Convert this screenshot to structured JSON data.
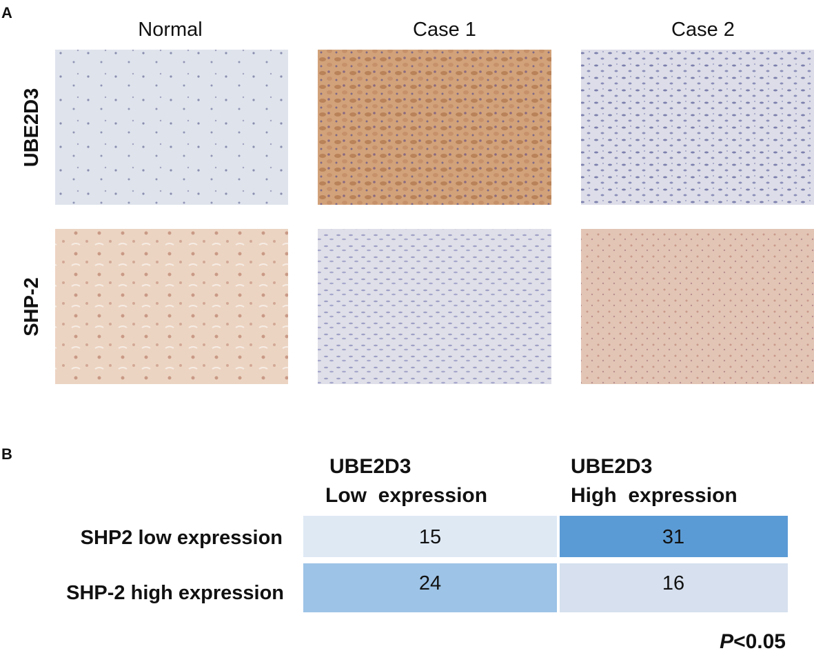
{
  "panel_a": {
    "label": "A",
    "columns": [
      "Normal",
      "Case 1",
      "Case 2"
    ],
    "rows": [
      "UBE2D3",
      "SHP-2"
    ]
  },
  "panel_b": {
    "label": "B",
    "column_headers": [
      [
        "UBE2D3",
        "Low  expression"
      ],
      [
        "UBE2D3",
        "High  expression"
      ]
    ],
    "row_headers": [
      "SHP2 low expression",
      "SHP-2 high expression"
    ],
    "table": {
      "rows": [
        [
          "15",
          "31"
        ],
        [
          "24",
          "16"
        ]
      ]
    },
    "p_value": {
      "symbol": "P",
      "text": "<0.05"
    }
  }
}
